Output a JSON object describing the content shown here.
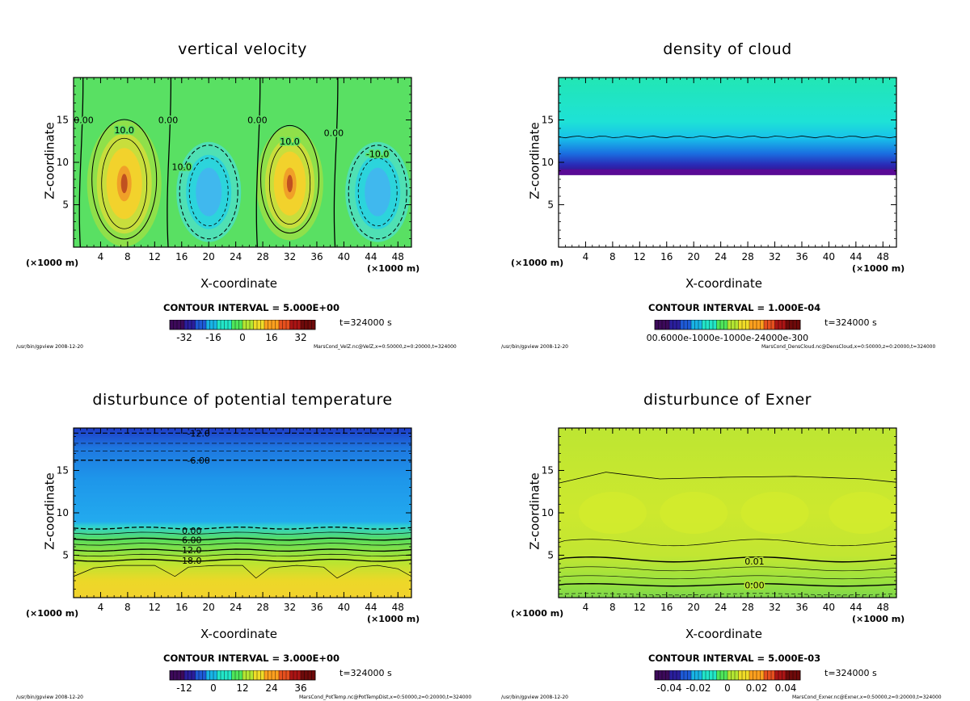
{
  "colors": {
    "rainbow_stops": [
      "#3d0a5a",
      "#2a1e9c",
      "#1e5ad6",
      "#18b4e6",
      "#22e6c8",
      "#4fe65a",
      "#b4e632",
      "#f0dc28",
      "#ffa01e",
      "#e6501e",
      "#aa1414",
      "#6e0a0a"
    ]
  },
  "chart_data": [
    {
      "id": "vertical-velocity",
      "type": "heatmap",
      "title": "vertical velocity",
      "xlabel": "X-coordinate",
      "ylabel": "Z-coordinate",
      "x_unit_left": "(×1000 m)",
      "x_unit_right": "(×1000 m)",
      "xlim": [
        0,
        50
      ],
      "ylim": [
        0,
        20
      ],
      "xticks": [
        4,
        8,
        12,
        16,
        20,
        24,
        28,
        32,
        36,
        40,
        44,
        48
      ],
      "yticks": [
        5,
        10,
        15
      ],
      "contour_interval": "CONTOUR INTERVAL = 5.000E+00",
      "time": "t=324000 s",
      "colorbar_range": [
        -40,
        40
      ],
      "colorbar_ticks": [
        "-32",
        "-16",
        "0",
        "16",
        "32"
      ],
      "footer_left": "/usr/bin/gpview  2008-12-20",
      "footer_right": "MarsCond_VelZ.nc@VelZ,x=0:50000,z=0:20000,t=324000",
      "contour_labels": [
        {
          "text": "0.00",
          "x": 1.5,
          "z": 15
        },
        {
          "text": "10.0",
          "x": 7.5,
          "z": 13.8
        },
        {
          "text": "0.00",
          "x": 14,
          "z": 15
        },
        {
          "text": "10.0",
          "x": 16,
          "z": 9.5
        },
        {
          "text": "0.00",
          "x": 27.2,
          "z": 15
        },
        {
          "text": "10.0",
          "x": 32,
          "z": 12.5
        },
        {
          "text": "0.00",
          "x": 38.5,
          "z": 13.5
        },
        {
          "text": "-10.0",
          "x": 45,
          "z": 11
        }
      ]
    },
    {
      "id": "density-of-cloud",
      "type": "heatmap",
      "title": "density of cloud",
      "xlabel": "X-coordinate",
      "ylabel": "Z-coordinate",
      "x_unit_left": "(×1000 m)",
      "x_unit_right": "(×1000 m)",
      "xlim": [
        0,
        50
      ],
      "ylim": [
        0,
        20
      ],
      "xticks": [
        4,
        8,
        12,
        16,
        20,
        24,
        28,
        32,
        36,
        40,
        44,
        48
      ],
      "yticks": [
        5,
        10,
        15
      ],
      "contour_interval": "CONTOUR INTERVAL = 1.000E-04",
      "time": "t=324000 s",
      "colorbar_ticks_text": "0.10000.6000e-1000e-1000e-24000e-3000e-03",
      "footer_left": "/usr/bin/gpview  2008-12-20",
      "footer_right": "MarsCond_DensCloud.nc@DensCloud,x=0:50000,z=0:20000,t=324000",
      "cloud_base_z": 8.5
    },
    {
      "id": "disturbance-of-potential-temperature",
      "type": "heatmap",
      "title": "disturbunce of potential temperature",
      "xlabel": "X-coordinate",
      "ylabel": "Z-coordinate",
      "x_unit_left": "(×1000 m)",
      "x_unit_right": "(×1000 m)",
      "xlim": [
        0,
        50
      ],
      "ylim": [
        0,
        20
      ],
      "xticks": [
        4,
        8,
        12,
        16,
        20,
        24,
        28,
        32,
        36,
        40,
        44,
        48
      ],
      "yticks": [
        5,
        10,
        15
      ],
      "contour_interval": "CONTOUR INTERVAL = 3.000E+00",
      "time": "t=324000 s",
      "colorbar_range": [
        -18,
        42
      ],
      "colorbar_ticks": [
        "-12",
        "0",
        "12",
        "24",
        "36"
      ],
      "footer_left": "/usr/bin/gpview  2008-12-20",
      "footer_right": "MarsCond_PotTemp.nc@PotTempDist,x=0:50000,z=0:20000,t=324000",
      "contour_labels": [
        {
          "text": "-12.0",
          "x": 18.5,
          "z": 19.4
        },
        {
          "text": "-6.00",
          "x": 18.5,
          "z": 16.2
        },
        {
          "text": "0.00",
          "x": 17.5,
          "z": 7.9
        },
        {
          "text": "6.00",
          "x": 17.5,
          "z": 6.8
        },
        {
          "text": "12.0",
          "x": 17.5,
          "z": 5.6
        },
        {
          "text": "18.0",
          "x": 17.5,
          "z": 4.4
        }
      ]
    },
    {
      "id": "disturbance-of-exner",
      "type": "heatmap",
      "title": "disturbunce of Exner",
      "xlabel": "X-coordinate",
      "ylabel": "Z-coordinate",
      "x_unit_left": "(×1000 m)",
      "x_unit_right": "(×1000 m)",
      "xlim": [
        0,
        50
      ],
      "ylim": [
        0,
        20
      ],
      "xticks": [
        4,
        8,
        12,
        16,
        20,
        24,
        28,
        32,
        36,
        40,
        44,
        48
      ],
      "yticks": [
        5,
        10,
        15
      ],
      "contour_interval": "CONTOUR INTERVAL = 5.000E-03",
      "time": "t=324000 s",
      "colorbar_range": [
        -0.05,
        0.05
      ],
      "colorbar_ticks": [
        "-0.04",
        "-0.02",
        "0",
        "0.02",
        "0.04"
      ],
      "footer_left": "/usr/bin/gpview  2008-12-20",
      "footer_right": "MarsCond_Exner.nc@Exner,x=0:50000,z=0:20000,t=324000",
      "contour_labels": [
        {
          "text": "0.01",
          "x": 29,
          "z": 4.3
        },
        {
          "text": "0.00",
          "x": 29,
          "z": 1.5
        }
      ]
    }
  ]
}
